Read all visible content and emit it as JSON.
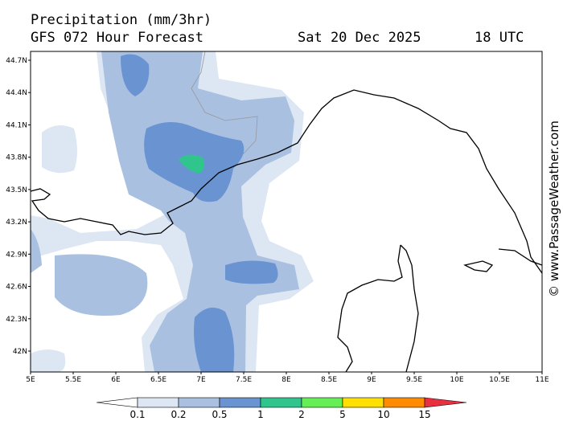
{
  "header": {
    "title": "Precipitation (mm/3hr)",
    "subtitle": "GFS 072 Hour Forecast",
    "date": "Sat 20 Dec 2025",
    "time": "18 UTC"
  },
  "credit": "© www.PassageWeather.com",
  "lat_labels": [
    "44.7N",
    "44.4N",
    "44.1N",
    "43.8N",
    "43.5N",
    "43.2N",
    "42.9N",
    "42.6N",
    "42.3N",
    "42N"
  ],
  "lon_labels": [
    "5E",
    "5.5E",
    "6E",
    "6.5E",
    "7E",
    "7.5E",
    "8E",
    "8.5E",
    "9E",
    "9.5E",
    "10E",
    "10.5E",
    "11E"
  ],
  "legend": {
    "labels": [
      "0.1",
      "0.2",
      "0.5",
      "1",
      "2",
      "5",
      "10",
      "15"
    ],
    "colors": [
      "#dde6f3",
      "#a9c0e1",
      "#6a93d2",
      "#2fc58c",
      "#66ee55",
      "#ffe000",
      "#ff8c00"
    ],
    "low_color": "#ffffff",
    "high_color": "#e83040"
  }
}
